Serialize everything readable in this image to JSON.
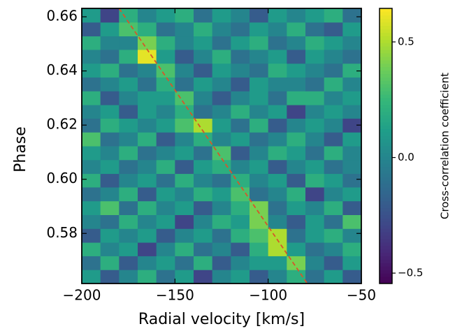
{
  "chart_data": {
    "type": "heatmap",
    "xlabel": "Radial velocity [km/s]",
    "ylabel": "Phase",
    "colorbar_label": "Cross-correlation coefficient",
    "colormap": "viridis",
    "xbins": [
      -200,
      -190,
      -180,
      -170,
      -160,
      -150,
      -140,
      -130,
      -120,
      -110,
      -100,
      -90,
      -80,
      -70,
      -60,
      -50
    ],
    "ybins": [
      0.5615,
      0.5666,
      0.5717,
      0.5767,
      0.5818,
      0.5869,
      0.592,
      0.5971,
      0.6021,
      0.6072,
      0.6123,
      0.6174,
      0.6225,
      0.6275,
      0.6326,
      0.6377,
      0.6428,
      0.6479,
      0.6529,
      0.658,
      0.6631
    ],
    "values": [
      [
        0.1,
        -0.2,
        0.0,
        0.2,
        -0.1,
        0.1,
        -0.3,
        0.0,
        0.1,
        -0.2,
        0.0,
        0.2,
        -0.1,
        0.1,
        -0.2
      ],
      [
        -0.1,
        0.2,
        -0.2,
        0.0,
        0.1,
        -0.1,
        0.2,
        -0.2,
        0.0,
        0.1,
        0.1,
        0.4,
        0.0,
        -0.2,
        0.1
      ],
      [
        0.2,
        0.0,
        0.1,
        -0.3,
        0.0,
        0.2,
        -0.1,
        0.0,
        -0.2,
        0.2,
        0.5,
        0.1,
        -0.1,
        0.0,
        0.2
      ],
      [
        -0.2,
        0.1,
        0.0,
        0.1,
        -0.2,
        0.0,
        0.1,
        -0.1,
        0.2,
        0.3,
        0.5,
        -0.1,
        0.1,
        0.2,
        0.0
      ],
      [
        0.0,
        -0.1,
        0.2,
        0.0,
        0.1,
        -0.3,
        0.0,
        0.2,
        0.1,
        0.4,
        0.0,
        -0.2,
        0.1,
        -0.1,
        0.3
      ],
      [
        0.1,
        0.3,
        -0.1,
        0.2,
        0.0,
        0.1,
        -0.2,
        0.0,
        0.2,
        0.4,
        -0.1,
        0.1,
        0.0,
        0.2,
        -0.2
      ],
      [
        -0.1,
        0.0,
        0.2,
        -0.2,
        0.1,
        0.0,
        0.2,
        0.1,
        0.3,
        -0.1,
        0.0,
        0.2,
        -0.3,
        0.0,
        0.1
      ],
      [
        0.2,
        -0.2,
        0.0,
        0.1,
        -0.1,
        0.2,
        0.0,
        -0.1,
        0.2,
        0.0,
        0.1,
        -0.2,
        0.2,
        0.1,
        -0.1
      ],
      [
        0.0,
        0.1,
        -0.1,
        0.0,
        0.2,
        -0.2,
        0.1,
        0.2,
        0.0,
        0.1,
        -0.2,
        0.0,
        0.1,
        -0.1,
        0.0
      ],
      [
        0.1,
        0.0,
        0.2,
        -0.1,
        0.0,
        0.1,
        -0.1,
        0.3,
        -0.2,
        0.0,
        0.2,
        0.1,
        -0.1,
        0.2,
        0.0
      ],
      [
        0.3,
        -0.1,
        0.0,
        0.2,
        -0.2,
        0.0,
        0.2,
        0.0,
        0.1,
        -0.1,
        0.0,
        0.2,
        0.0,
        -0.2,
        0.1
      ],
      [
        -0.1,
        0.2,
        0.1,
        0.0,
        0.1,
        0.3,
        0.5,
        0.1,
        -0.1,
        0.2,
        -0.2,
        0.0,
        0.1,
        0.0,
        -0.3
      ],
      [
        0.0,
        0.1,
        -0.2,
        0.1,
        0.0,
        0.2,
        -0.1,
        0.0,
        0.2,
        0.0,
        0.1,
        -0.3,
        0.0,
        0.1,
        0.0
      ],
      [
        0.2,
        -0.2,
        0.0,
        0.1,
        0.1,
        0.3,
        0.0,
        -0.2,
        0.0,
        0.1,
        -0.1,
        0.2,
        0.2,
        0.0,
        0.1
      ],
      [
        -0.1,
        0.0,
        0.1,
        -0.1,
        0.2,
        -0.1,
        0.1,
        0.0,
        -0.2,
        0.1,
        0.0,
        0.0,
        -0.1,
        0.2,
        0.0
      ],
      [
        0.1,
        0.2,
        -0.1,
        0.0,
        0.3,
        0.0,
        -0.2,
        0.1,
        0.0,
        -0.1,
        0.2,
        0.1,
        0.0,
        -0.1,
        0.2
      ],
      [
        0.0,
        -0.1,
        0.2,
        0.6,
        0.1,
        -0.2,
        0.0,
        0.2,
        -0.1,
        0.0,
        0.1,
        -0.2,
        0.1,
        0.0,
        -0.1
      ],
      [
        0.2,
        0.0,
        0.0,
        0.4,
        0.2,
        0.0,
        0.1,
        -0.1,
        0.1,
        0.2,
        -0.1,
        0.0,
        0.2,
        0.1,
        0.0
      ],
      [
        -0.2,
        0.1,
        0.3,
        0.2,
        -0.1,
        0.0,
        0.2,
        0.0,
        -0.1,
        0.1,
        0.0,
        0.2,
        -0.1,
        -0.2,
        0.1
      ],
      [
        0.1,
        -0.3,
        0.2,
        0.0,
        0.1,
        0.2,
        -0.1,
        0.1,
        0.0,
        -0.2,
        0.1,
        0.0,
        0.1,
        0.2,
        -0.1
      ]
    ],
    "xlim": [
      -200,
      -50
    ],
    "xticks": [
      {
        "value": -200,
        "label": "−200"
      },
      {
        "value": -150,
        "label": "−150"
      },
      {
        "value": -100,
        "label": "−100"
      },
      {
        "value": -50,
        "label": "−50"
      }
    ],
    "ylim": [
      0.5615,
      0.6631
    ],
    "yticks": [
      0.58,
      {
        "value": 0.6,
        "label": "0.60"
      },
      0.62,
      0.64,
      0.66
    ],
    "clim": [
      -0.545,
      0.645
    ],
    "cticks": [
      {
        "value": -0.5,
        "label": "−0.5"
      },
      {
        "value": 0,
        "label": "0.0"
      },
      0.5
    ],
    "line": {
      "x": [
        -180,
        -79
      ],
      "y": [
        0.6631,
        0.5615
      ],
      "color": "#d6552b",
      "style": "dashed"
    }
  }
}
